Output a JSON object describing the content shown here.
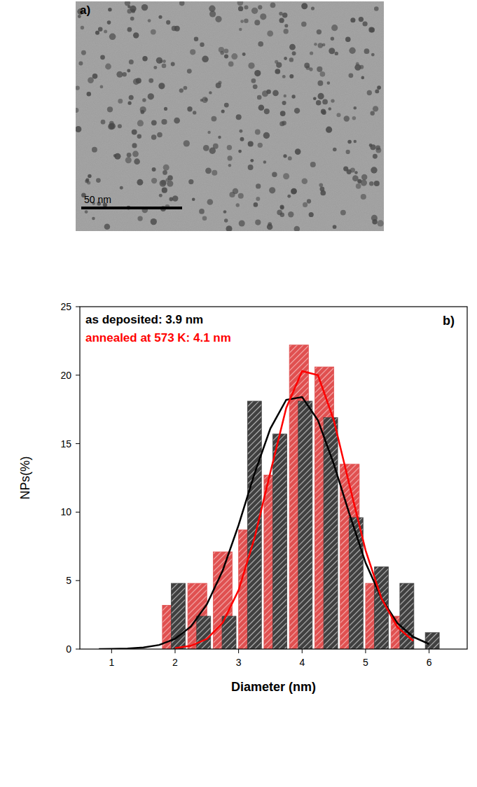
{
  "image_panel": {
    "panel_label": "a)",
    "scale_bar_label": "50 nm"
  },
  "chart_data": {
    "type": "bar",
    "panel_label": "b)",
    "x_label": "Diameter (nm)",
    "y_label": "NPs(%)",
    "annotations": [
      {
        "text": "as deposited: 3.9 nm",
        "color": "#000000"
      },
      {
        "text": "annealed at 573 K: 4.1 nm",
        "color": "#ff0000"
      }
    ],
    "xlim": [
      0.5,
      6.6
    ],
    "xticks": [
      1,
      2,
      3,
      4,
      5,
      6
    ],
    "ylim": [
      0,
      25
    ],
    "yticks": [
      0,
      5,
      10,
      15,
      20,
      25
    ],
    "series": [
      {
        "type": "bar",
        "color": "#e05050",
        "x": [
          1.95,
          2.35,
          2.75,
          3.15,
          3.55,
          3.95,
          4.35,
          4.75,
          5.15,
          5.55
        ],
        "values": [
          3.2,
          4.8,
          7.1,
          8.7,
          12.7,
          22.2,
          20.6,
          13.5,
          4.8,
          2.4
        ]
      },
      {
        "type": "bar",
        "color": "#404040",
        "x": [
          2.05,
          2.45,
          2.85,
          3.25,
          3.65,
          4.05,
          4.45,
          4.85,
          5.25,
          5.65,
          6.05
        ],
        "values": [
          4.8,
          2.4,
          2.4,
          18.1,
          15.7,
          18.1,
          16.9,
          9.6,
          6.0,
          4.8,
          1.2
        ]
      },
      {
        "type": "line",
        "color": "#000000",
        "x": [
          0.8,
          1,
          1.25,
          1.5,
          1.75,
          2,
          2.25,
          2.5,
          2.75,
          3,
          3.25,
          3.5,
          3.75,
          4,
          4.25,
          4.5,
          4.75,
          5,
          5.25,
          5.5,
          5.75,
          6
        ],
        "values": [
          0.0,
          0.01,
          0.04,
          0.11,
          0.3,
          0.75,
          1.65,
          3.26,
          5.74,
          9.05,
          12.8,
          16.1,
          18.2,
          18.4,
          16.7,
          13.5,
          9.8,
          6.3,
          3.7,
          1.9,
          0.89,
          0.37
        ]
      },
      {
        "type": "line",
        "color": "#ff0000",
        "x": [
          2,
          2.25,
          2.5,
          2.75,
          3,
          3.25,
          3.5,
          3.75,
          4,
          4.25,
          4.5,
          4.75,
          5,
          5.25,
          5.5,
          5.75
        ],
        "values": [
          0.07,
          0.24,
          0.74,
          1.93,
          4.3,
          8.1,
          12.9,
          17.6,
          20.3,
          20.0,
          16.7,
          11.9,
          7.2,
          3.7,
          1.6,
          0.6
        ]
      }
    ]
  }
}
